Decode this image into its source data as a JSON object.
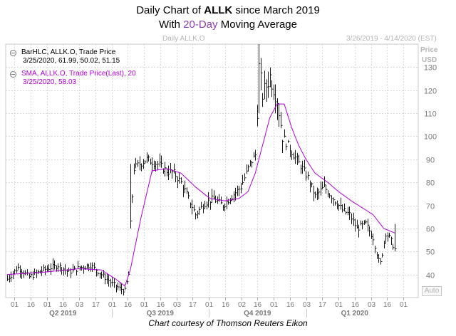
{
  "header": {
    "title_line1_prefix": "Daily Chart of ",
    "title_line1_ticker": "ALLK",
    "title_line1_suffix": " since March 2019",
    "title_line2_prefix": "With ",
    "title_line2_highlight": "20-Day",
    "title_line2_suffix": " Moving Average",
    "panel_label": "Daily ALLK.O",
    "date_range": "3/26/2019 - 4/14/2020 (EST)",
    "axis_title_line1": "Price",
    "axis_title_line2": "USD"
  },
  "legend": {
    "series1_line1": "BarHLC, ALLK.O, Trade Price",
    "series1_line2": "3/25/2020, 61.99, 50.02, 51.15",
    "series2_line1": "SMA, ALLK.O, Trade Price(Last),  20",
    "series2_line2": "3/25/2020, 58.03"
  },
  "auto_button": "Auto",
  "footer": "Chart courtesy of Thomson Reuters Eikon",
  "colors": {
    "bars": "#1a1a1a",
    "sma": "#b000d8",
    "grid": "#d8d8d8",
    "highlight": "#8e3bb5",
    "hdr_text": "#b4b4b4"
  },
  "chart_data": {
    "type": "line",
    "title": "Daily Chart of ALLK since March 2019",
    "subtitle": "With 20-Day Moving Average",
    "ylabel": "Price USD",
    "ylim": [
      30,
      140
    ],
    "yticks": [
      40,
      50,
      60,
      70,
      80,
      90,
      100,
      110,
      120,
      130
    ],
    "grid": true,
    "legend_position": "top-left",
    "x_tick_labels": [
      "01",
      "16",
      "01",
      "16",
      "03",
      "17",
      "01",
      "16",
      "01",
      "16",
      "03",
      "17",
      "01",
      "16",
      "02",
      "16",
      "01",
      "16",
      "03",
      "17",
      "01",
      "16",
      "03",
      "16",
      "01"
    ],
    "quarter_labels": [
      "Q2 2019",
      "Q3 2019",
      "Q4 2019",
      "Q1 2020"
    ],
    "series": [
      {
        "name": "BarHLC, ALLK.O, Trade Price",
        "style": "hlc-bars",
        "close_anchors": [
          [
            0,
            38
          ],
          [
            6,
            43
          ],
          [
            12,
            39
          ],
          [
            20,
            42
          ],
          [
            28,
            44
          ],
          [
            34,
            41
          ],
          [
            40,
            43
          ],
          [
            46,
            44
          ],
          [
            52,
            40
          ],
          [
            58,
            36
          ],
          [
            62,
            34
          ],
          [
            65,
            33
          ],
          [
            67,
            40
          ],
          [
            68,
            62
          ],
          [
            70,
            86
          ],
          [
            73,
            88
          ],
          [
            77,
            90
          ],
          [
            83,
            88
          ],
          [
            88,
            85
          ],
          [
            92,
            84
          ],
          [
            96,
            80
          ],
          [
            100,
            73
          ],
          [
            104,
            66
          ],
          [
            109,
            71
          ],
          [
            114,
            73
          ],
          [
            119,
            70
          ],
          [
            124,
            74
          ],
          [
            129,
            78
          ],
          [
            134,
            88
          ],
          [
            137,
            92
          ],
          [
            139,
            130
          ],
          [
            141,
            118
          ],
          [
            145,
            126
          ],
          [
            149,
            116
          ],
          [
            152,
            100
          ],
          [
            155,
            96
          ],
          [
            158,
            92
          ],
          [
            163,
            86
          ],
          [
            166,
            82
          ],
          [
            170,
            74
          ],
          [
            175,
            78
          ],
          [
            180,
            73
          ],
          [
            185,
            68
          ],
          [
            189,
            66
          ],
          [
            193,
            60
          ],
          [
            198,
            62
          ],
          [
            202,
            56
          ],
          [
            205,
            46
          ],
          [
            206,
            45
          ],
          [
            209,
            58
          ],
          [
            211,
            56
          ],
          [
            214,
            51.15
          ]
        ],
        "last_hlc": [
          61.99,
          50.02,
          51.15
        ]
      },
      {
        "name": "SMA, ALLK.O, Trade Price(Last), 20",
        "style": "line",
        "anchors": [
          [
            0,
            40
          ],
          [
            20,
            41
          ],
          [
            40,
            42.5
          ],
          [
            52,
            42
          ],
          [
            60,
            38
          ],
          [
            65,
            35
          ],
          [
            68,
            42
          ],
          [
            74,
            65
          ],
          [
            80,
            85
          ],
          [
            88,
            86
          ],
          [
            96,
            84
          ],
          [
            104,
            78
          ],
          [
            112,
            73
          ],
          [
            120,
            72
          ],
          [
            128,
            73
          ],
          [
            133,
            76
          ],
          [
            137,
            84
          ],
          [
            141,
            96
          ],
          [
            145,
            108
          ],
          [
            149,
            114
          ],
          [
            153,
            114
          ],
          [
            157,
            104
          ],
          [
            161,
            96
          ],
          [
            165,
            90
          ],
          [
            170,
            84
          ],
          [
            177,
            80
          ],
          [
            183,
            76
          ],
          [
            190,
            72
          ],
          [
            196,
            69
          ],
          [
            202,
            66
          ],
          [
            208,
            60
          ],
          [
            214,
            58.03
          ]
        ]
      }
    ]
  }
}
